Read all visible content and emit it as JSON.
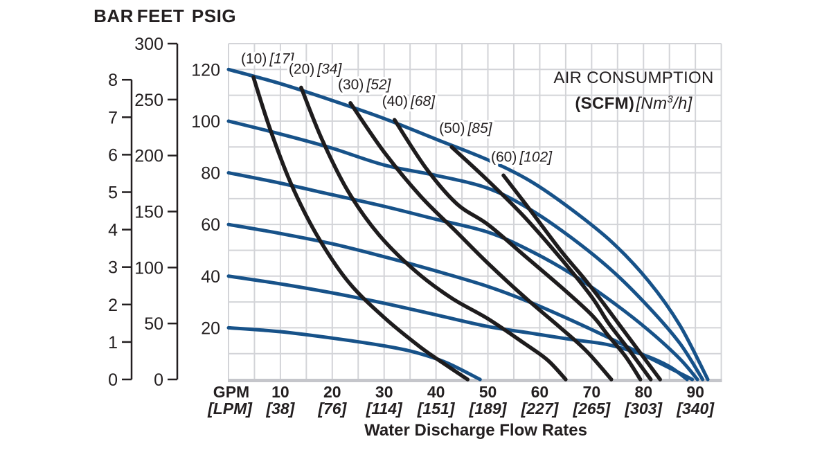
{
  "header": {
    "axis_units": [
      "BAR",
      "FEET",
      "PSIG"
    ]
  },
  "colors": {
    "curve_blue": "#175289",
    "curve_black": "#1e1c1d",
    "grid": "#d3d4d8",
    "axis_edge": "#c5c6cb",
    "text": "#231f20"
  },
  "chart_data": {
    "type": "line",
    "title": "",
    "grid": true,
    "x_axis": {
      "unit_primary": "GPM",
      "unit_secondary": "[LPM]",
      "title": "Water Discharge Flow Rates",
      "range_gpm": [
        0,
        95
      ],
      "ticks": [
        {
          "gpm": "10",
          "lpm": "[38]"
        },
        {
          "gpm": "20",
          "lpm": "[76]"
        },
        {
          "gpm": "30",
          "lpm": "[114]"
        },
        {
          "gpm": "40",
          "lpm": "[151]"
        },
        {
          "gpm": "50",
          "lpm": "[189]"
        },
        {
          "gpm": "60",
          "lpm": "[227]"
        },
        {
          "gpm": "70",
          "lpm": "[265]"
        },
        {
          "gpm": "80",
          "lpm": "[303]"
        },
        {
          "gpm": "90",
          "lpm": "[340]"
        }
      ]
    },
    "y_axis_psig": {
      "unit": "PSIG",
      "range": [
        0,
        130
      ],
      "ticks": [
        120,
        100,
        80,
        60,
        40,
        20
      ]
    },
    "y_axis_feet": {
      "unit": "FEET",
      "range": [
        0,
        300
      ],
      "ticks": [
        300,
        250,
        200,
        150,
        100,
        50,
        0
      ]
    },
    "y_axis_bar": {
      "unit": "BAR",
      "range": [
        0,
        8
      ],
      "ticks": [
        8,
        7,
        6,
        5,
        4,
        3,
        2,
        1,
        0
      ]
    },
    "legend": {
      "title": "AIR CONSUMPTION",
      "unit_bold": "(SCFM)",
      "unit_italic_prefix": "[Nm",
      "unit_italic_sup": "3",
      "unit_italic_suffix": "/h]"
    },
    "water_curves": [
      {
        "air_inlet_psi": 120,
        "points_gpm_psig": [
          [
            0,
            120
          ],
          [
            10,
            114.5
          ],
          [
            20,
            108
          ],
          [
            30,
            101
          ],
          [
            40,
            93
          ],
          [
            50,
            85
          ],
          [
            58,
            77
          ],
          [
            66,
            66
          ],
          [
            74,
            53
          ],
          [
            81,
            38
          ],
          [
            87,
            21
          ],
          [
            92.4,
            0
          ]
        ]
      },
      {
        "air_inlet_psi": 100,
        "points_gpm_psig": [
          [
            0,
            100
          ],
          [
            10,
            95
          ],
          [
            20,
            89.5
          ],
          [
            30,
            83
          ],
          [
            40,
            79
          ],
          [
            50,
            74
          ],
          [
            58,
            66
          ],
          [
            66,
            55
          ],
          [
            74,
            42
          ],
          [
            81,
            28
          ],
          [
            87,
            14
          ],
          [
            91.4,
            0
          ]
        ]
      },
      {
        "air_inlet_psi": 80,
        "points_gpm_psig": [
          [
            0,
            80
          ],
          [
            10,
            76
          ],
          [
            20,
            71.5
          ],
          [
            30,
            67
          ],
          [
            40,
            62
          ],
          [
            50,
            57
          ],
          [
            58,
            50
          ],
          [
            66,
            41
          ],
          [
            74,
            30
          ],
          [
            81,
            19
          ],
          [
            87,
            8
          ],
          [
            90.4,
            0
          ]
        ]
      },
      {
        "air_inlet_psi": 60,
        "points_gpm_psig": [
          [
            0,
            60
          ],
          [
            10,
            56.5
          ],
          [
            20,
            52.5
          ],
          [
            30,
            47.5
          ],
          [
            40,
            42
          ],
          [
            50,
            36
          ],
          [
            58,
            30
          ],
          [
            66,
            23
          ],
          [
            74,
            15.5
          ],
          [
            81,
            8.5
          ],
          [
            89.4,
            0
          ]
        ]
      },
      {
        "air_inlet_psi": 40,
        "points_gpm_psig": [
          [
            0,
            40
          ],
          [
            10,
            37
          ],
          [
            20,
            33.5
          ],
          [
            30,
            29.5
          ],
          [
            40,
            25
          ],
          [
            50,
            20.5
          ],
          [
            58,
            18
          ],
          [
            66,
            15.5
          ],
          [
            73,
            13.5
          ],
          [
            80,
            9.5
          ],
          [
            85,
            5
          ],
          [
            88.4,
            0
          ]
        ]
      },
      {
        "air_inlet_psi": 20,
        "points_gpm_psig": [
          [
            0,
            20
          ],
          [
            10,
            18.5
          ],
          [
            20,
            16
          ],
          [
            30,
            13
          ],
          [
            36,
            10.5
          ],
          [
            42,
            6.5
          ],
          [
            48.5,
            0
          ]
        ]
      }
    ],
    "air_curves": [
      {
        "scfm": 10,
        "scfm_label": "(10)",
        "nm3h_label": "[17]",
        "points_gpm_psig": [
          [
            4.8,
            117
          ],
          [
            8,
            97
          ],
          [
            12,
            76
          ],
          [
            17,
            56
          ],
          [
            23,
            38
          ],
          [
            30,
            24
          ],
          [
            37,
            12.5
          ],
          [
            42,
            5.5
          ],
          [
            46.1,
            0
          ]
        ]
      },
      {
        "scfm": 20,
        "scfm_label": "(20)",
        "nm3h_label": "[34]",
        "points_gpm_psig": [
          [
            14,
            113
          ],
          [
            18,
            93
          ],
          [
            23,
            73
          ],
          [
            29,
            56
          ],
          [
            36,
            42
          ],
          [
            43,
            31.5
          ],
          [
            50,
            23.5
          ],
          [
            57,
            14
          ],
          [
            61.5,
            7.5
          ],
          [
            65,
            0
          ]
        ]
      },
      {
        "scfm": 30,
        "scfm_label": "(30)",
        "nm3h_label": "[52]",
        "points_gpm_psig": [
          [
            23.5,
            107
          ],
          [
            30,
            88
          ],
          [
            37,
            71
          ],
          [
            44,
            57
          ],
          [
            50,
            45
          ],
          [
            57,
            32
          ],
          [
            64,
            20
          ],
          [
            69,
            11
          ],
          [
            73.8,
            0
          ]
        ]
      },
      {
        "scfm": 40,
        "scfm_label": "(40)",
        "nm3h_label": "[68]",
        "points_gpm_psig": [
          [
            32,
            100.5
          ],
          [
            38,
            82
          ],
          [
            44,
            68
          ],
          [
            50,
            60
          ],
          [
            57,
            48
          ],
          [
            64,
            36
          ],
          [
            70,
            25
          ],
          [
            73.2,
            17
          ],
          [
            76.5,
            9
          ],
          [
            79.4,
            0
          ]
        ]
      },
      {
        "scfm": 50,
        "scfm_label": "(50)",
        "nm3h_label": "[85]",
        "points_gpm_psig": [
          [
            43,
            90
          ],
          [
            50,
            77
          ],
          [
            57,
            63
          ],
          [
            64,
            47
          ],
          [
            70,
            32
          ],
          [
            73.2,
            22
          ],
          [
            77,
            12
          ],
          [
            81.4,
            0
          ]
        ]
      },
      {
        "scfm": 60,
        "scfm_label": "(60)",
        "nm3h_label": "[102]",
        "points_gpm_psig": [
          [
            53,
            79
          ],
          [
            58,
            66
          ],
          [
            64,
            50
          ],
          [
            69,
            38
          ],
          [
            73.2,
            27
          ],
          [
            78,
            14
          ],
          [
            83.2,
            0
          ]
        ]
      }
    ]
  }
}
